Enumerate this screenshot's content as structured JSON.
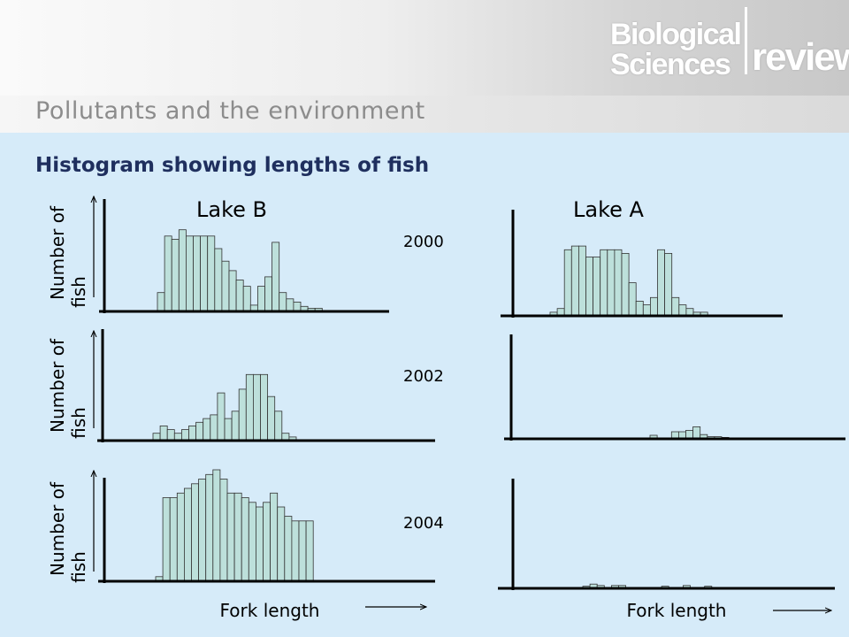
{
  "header": {
    "title": "Pollutants and the environment",
    "logo_line1": "Biological",
    "logo_line2": "Sciences",
    "logo_line3": "review"
  },
  "slide_title": "Histogram showing lengths of fish",
  "colors": {
    "bar_fill": "#bde0db",
    "bar_stroke": "#333333",
    "axis": "#000000",
    "background": "#d6ebf9",
    "title": "#1f2f5e"
  },
  "labels": {
    "lake_b": "Lake B",
    "lake_a": "Lake A",
    "ylabel_line1": "Number of",
    "ylabel_line2": "fish",
    "xlabel": "Fork length",
    "years": [
      "2000",
      "2002",
      "2004"
    ]
  },
  "chart_data": [
    {
      "type": "bar",
      "lake": "Lake B",
      "year": "2000",
      "values": [
        3,
        12,
        11.5,
        13,
        12,
        12,
        12,
        12,
        10,
        8,
        6.5,
        5,
        4,
        1,
        4,
        5.5,
        11,
        3,
        2,
        1.5,
        0.8,
        0.5,
        0.5
      ]
    },
    {
      "type": "bar",
      "lake": "Lake A",
      "year": "2000",
      "values": [
        0.5,
        1,
        9,
        9.5,
        9.5,
        8,
        8,
        9,
        9,
        9,
        8.5,
        4.5,
        2,
        1.5,
        2.5,
        9,
        8.5,
        2.5,
        1.5,
        1,
        0.5,
        0.5
      ]
    },
    {
      "type": "bar",
      "lake": "Lake B",
      "year": "2002",
      "values": [
        1,
        2,
        1.5,
        1,
        1.5,
        2,
        2.5,
        3,
        3.5,
        6.5,
        3,
        4,
        7,
        9,
        9,
        9,
        6,
        4,
        1,
        0.5
      ]
    },
    {
      "type": "bar",
      "lake": "Lake A",
      "year": "2002",
      "values": [
        0.5,
        0,
        0,
        1,
        1,
        1.2,
        1.7,
        0.6,
        0.3,
        0.3,
        0.2
      ]
    },
    {
      "type": "bar",
      "lake": "Lake B",
      "year": "2004",
      "values": [
        0.5,
        9,
        9,
        9.5,
        10,
        10.5,
        11,
        11.5,
        12,
        11,
        9.5,
        9.5,
        9,
        8.5,
        8,
        8.5,
        9.5,
        8,
        7,
        6.5,
        6.5,
        6.5
      ]
    },
    {
      "type": "bar",
      "lake": "Lake A",
      "year": "2004",
      "values": [
        0.3,
        0.6,
        0.4,
        0,
        0.4,
        0.4,
        0,
        0,
        0,
        0,
        0,
        0.3,
        0,
        0,
        0.4,
        0,
        0,
        0.3
      ]
    }
  ]
}
